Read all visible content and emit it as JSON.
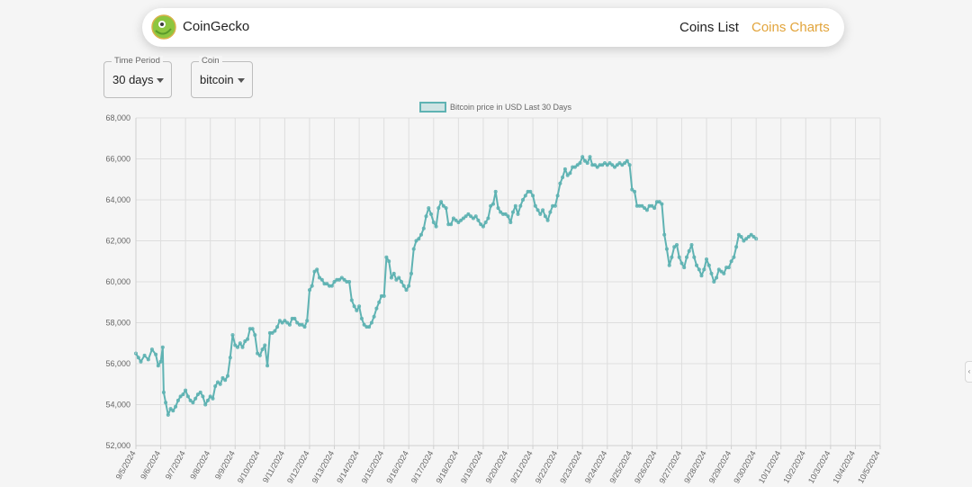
{
  "nav": {
    "brand": "CoinGecko",
    "links": [
      "Coins List",
      "Coins Charts"
    ]
  },
  "controls": {
    "time_period": {
      "label": "Time Period",
      "value": "30 days"
    },
    "coin": {
      "label": "Coin",
      "value": "bitcoin"
    }
  },
  "colors": {
    "line": "#5fb3b3",
    "active_link": "#e2a43b"
  },
  "side_handle": {
    "glyph": "‹"
  },
  "chart_data": {
    "type": "line",
    "title": "",
    "legend": "Bitcoin price in USD Last 30 Days",
    "legend_position": "top-center",
    "xlabel": "",
    "ylabel": "",
    "ylim": [
      52000,
      68000
    ],
    "yticks": [
      52000,
      54000,
      56000,
      58000,
      60000,
      62000,
      64000,
      66000,
      68000
    ],
    "ytick_labels": [
      "52,000",
      "54,000",
      "56,000",
      "58,000",
      "60,000",
      "62,000",
      "64,000",
      "66,000",
      "68,000"
    ],
    "categories": [
      "9/5/2024",
      "9/6/2024",
      "9/7/2024",
      "9/8/2024",
      "9/9/2024",
      "9/10/2024",
      "9/11/2024",
      "9/12/2024",
      "9/13/2024",
      "9/14/2024",
      "9/15/2024",
      "9/16/2024",
      "9/17/2024",
      "9/18/2024",
      "9/19/2024",
      "9/20/2024",
      "9/21/2024",
      "9/22/2024",
      "9/23/2024",
      "9/24/2024",
      "9/25/2024",
      "9/26/2024",
      "9/27/2024",
      "9/28/2024",
      "9/29/2024",
      "9/30/2024",
      "10/1/2024",
      "10/2/2024",
      "10/3/2024",
      "10/4/2024",
      "10/5/2024"
    ],
    "grid": true,
    "series": [
      {
        "name": "Bitcoin price in USD Last 30 Days",
        "points": [
          [
            0.0,
            56500
          ],
          [
            0.1,
            56300
          ],
          [
            0.2,
            56100
          ],
          [
            0.35,
            56400
          ],
          [
            0.5,
            56200
          ],
          [
            0.65,
            56700
          ],
          [
            0.8,
            56450
          ],
          [
            0.9,
            55900
          ],
          [
            1.0,
            56100
          ],
          [
            1.08,
            56800
          ],
          [
            1.12,
            54600
          ],
          [
            1.2,
            54100
          ],
          [
            1.3,
            53500
          ],
          [
            1.4,
            53800
          ],
          [
            1.5,
            53700
          ],
          [
            1.6,
            53900
          ],
          [
            1.7,
            54200
          ],
          [
            1.8,
            54400
          ],
          [
            1.9,
            54500
          ],
          [
            2.0,
            54700
          ],
          [
            2.1,
            54400
          ],
          [
            2.2,
            54200
          ],
          [
            2.3,
            54100
          ],
          [
            2.4,
            54300
          ],
          [
            2.5,
            54500
          ],
          [
            2.6,
            54600
          ],
          [
            2.7,
            54400
          ],
          [
            2.8,
            54000
          ],
          [
            2.9,
            54200
          ],
          [
            3.0,
            54400
          ],
          [
            3.1,
            54300
          ],
          [
            3.2,
            54900
          ],
          [
            3.3,
            55100
          ],
          [
            3.4,
            55000
          ],
          [
            3.5,
            55300
          ],
          [
            3.6,
            55200
          ],
          [
            3.7,
            55400
          ],
          [
            3.8,
            56300
          ],
          [
            3.9,
            57400
          ],
          [
            4.0,
            56900
          ],
          [
            4.1,
            56800
          ],
          [
            4.2,
            57000
          ],
          [
            4.3,
            56800
          ],
          [
            4.4,
            57100
          ],
          [
            4.5,
            57200
          ],
          [
            4.6,
            57700
          ],
          [
            4.7,
            57700
          ],
          [
            4.8,
            57400
          ],
          [
            4.9,
            56500
          ],
          [
            5.0,
            56400
          ],
          [
            5.1,
            56700
          ],
          [
            5.2,
            56900
          ],
          [
            5.3,
            55900
          ],
          [
            5.4,
            57500
          ],
          [
            5.5,
            57500
          ],
          [
            5.6,
            57600
          ],
          [
            5.7,
            57800
          ],
          [
            5.8,
            58100
          ],
          [
            5.9,
            58000
          ],
          [
            6.0,
            58100
          ],
          [
            6.1,
            58000
          ],
          [
            6.2,
            57900
          ],
          [
            6.3,
            58200
          ],
          [
            6.4,
            58200
          ],
          [
            6.5,
            58000
          ],
          [
            6.6,
            57900
          ],
          [
            6.7,
            57900
          ],
          [
            6.8,
            57800
          ],
          [
            6.9,
            58100
          ],
          [
            7.0,
            59600
          ],
          [
            7.1,
            59800
          ],
          [
            7.2,
            60500
          ],
          [
            7.3,
            60600
          ],
          [
            7.4,
            60200
          ],
          [
            7.5,
            60100
          ],
          [
            7.6,
            59900
          ],
          [
            7.7,
            59900
          ],
          [
            7.8,
            59800
          ],
          [
            7.9,
            59800
          ],
          [
            8.0,
            60000
          ],
          [
            8.1,
            60100
          ],
          [
            8.2,
            60100
          ],
          [
            8.3,
            60200
          ],
          [
            8.4,
            60100
          ],
          [
            8.5,
            60000
          ],
          [
            8.6,
            60000
          ],
          [
            8.7,
            59100
          ],
          [
            8.8,
            58800
          ],
          [
            8.9,
            58600
          ],
          [
            9.0,
            58800
          ],
          [
            9.1,
            58200
          ],
          [
            9.2,
            57900
          ],
          [
            9.3,
            57800
          ],
          [
            9.4,
            57800
          ],
          [
            9.5,
            58000
          ],
          [
            9.6,
            58300
          ],
          [
            9.7,
            58700
          ],
          [
            9.8,
            59000
          ],
          [
            9.9,
            59300
          ],
          [
            10.0,
            59300
          ],
          [
            10.1,
            61200
          ],
          [
            10.2,
            61000
          ],
          [
            10.3,
            60200
          ],
          [
            10.4,
            60400
          ],
          [
            10.5,
            60100
          ],
          [
            10.6,
            60200
          ],
          [
            10.7,
            60000
          ],
          [
            10.8,
            59800
          ],
          [
            10.9,
            59600
          ],
          [
            11.0,
            59800
          ],
          [
            11.1,
            60400
          ],
          [
            11.2,
            61600
          ],
          [
            11.3,
            62000
          ],
          [
            11.4,
            62100
          ],
          [
            11.5,
            62300
          ],
          [
            11.6,
            62600
          ],
          [
            11.7,
            63200
          ],
          [
            11.8,
            63600
          ],
          [
            11.9,
            63300
          ],
          [
            12.0,
            62900
          ],
          [
            12.1,
            62700
          ],
          [
            12.2,
            63600
          ],
          [
            12.3,
            63900
          ],
          [
            12.4,
            63700
          ],
          [
            12.5,
            63600
          ],
          [
            12.6,
            62800
          ],
          [
            12.7,
            62800
          ],
          [
            12.8,
            63100
          ],
          [
            12.9,
            63000
          ],
          [
            13.0,
            62900
          ],
          [
            13.1,
            63000
          ],
          [
            13.2,
            63100
          ],
          [
            13.3,
            63200
          ],
          [
            13.4,
            63300
          ],
          [
            13.5,
            63200
          ],
          [
            13.6,
            63100
          ],
          [
            13.7,
            63200
          ],
          [
            13.8,
            63000
          ],
          [
            13.9,
            62800
          ],
          [
            14.0,
            62700
          ],
          [
            14.1,
            62900
          ],
          [
            14.2,
            63100
          ],
          [
            14.3,
            63700
          ],
          [
            14.4,
            63800
          ],
          [
            14.5,
            64400
          ],
          [
            14.6,
            63600
          ],
          [
            14.7,
            63400
          ],
          [
            14.8,
            63300
          ],
          [
            14.9,
            63300
          ],
          [
            15.0,
            63200
          ],
          [
            15.1,
            62900
          ],
          [
            15.2,
            63400
          ],
          [
            15.3,
            63700
          ],
          [
            15.4,
            63300
          ],
          [
            15.5,
            63700
          ],
          [
            15.6,
            64000
          ],
          [
            15.7,
            64200
          ],
          [
            15.8,
            64400
          ],
          [
            15.9,
            64400
          ],
          [
            16.0,
            64200
          ],
          [
            16.1,
            63700
          ],
          [
            16.2,
            63500
          ],
          [
            16.3,
            63300
          ],
          [
            16.4,
            63500
          ],
          [
            16.5,
            63200
          ],
          [
            16.6,
            63000
          ],
          [
            16.7,
            63400
          ],
          [
            16.8,
            63700
          ],
          [
            16.9,
            63700
          ],
          [
            17.0,
            64200
          ],
          [
            17.1,
            64800
          ],
          [
            17.2,
            65100
          ],
          [
            17.3,
            65500
          ],
          [
            17.4,
            65200
          ],
          [
            17.5,
            65300
          ],
          [
            17.6,
            65600
          ],
          [
            17.7,
            65600
          ],
          [
            17.8,
            65700
          ],
          [
            17.9,
            65800
          ],
          [
            18.0,
            66100
          ],
          [
            18.1,
            65900
          ],
          [
            18.2,
            65800
          ],
          [
            18.3,
            66100
          ],
          [
            18.4,
            65700
          ],
          [
            18.5,
            65700
          ],
          [
            18.6,
            65600
          ],
          [
            18.7,
            65700
          ],
          [
            18.8,
            65700
          ],
          [
            18.9,
            65800
          ],
          [
            19.0,
            65700
          ],
          [
            19.1,
            65800
          ],
          [
            19.2,
            65700
          ],
          [
            19.3,
            65600
          ],
          [
            19.4,
            65700
          ],
          [
            19.5,
            65800
          ],
          [
            19.6,
            65700
          ],
          [
            19.7,
            65800
          ],
          [
            19.8,
            65900
          ],
          [
            19.9,
            65700
          ],
          [
            20.0,
            64500
          ],
          [
            20.1,
            64400
          ],
          [
            20.2,
            63700
          ],
          [
            20.3,
            63700
          ],
          [
            20.4,
            63700
          ],
          [
            20.5,
            63600
          ],
          [
            20.6,
            63500
          ],
          [
            20.7,
            63700
          ],
          [
            20.8,
            63700
          ],
          [
            20.9,
            63600
          ],
          [
            21.0,
            63900
          ],
          [
            21.1,
            63900
          ],
          [
            21.2,
            63800
          ],
          [
            21.3,
            62300
          ],
          [
            21.4,
            61600
          ],
          [
            21.5,
            60800
          ],
          [
            21.6,
            61200
          ],
          [
            21.7,
            61700
          ],
          [
            21.8,
            61800
          ],
          [
            21.9,
            61200
          ],
          [
            22.0,
            60900
          ],
          [
            22.1,
            60700
          ],
          [
            22.2,
            61200
          ],
          [
            22.3,
            61500
          ],
          [
            22.4,
            61800
          ],
          [
            22.5,
            61200
          ],
          [
            22.6,
            60800
          ],
          [
            22.7,
            60600
          ],
          [
            22.8,
            60300
          ],
          [
            22.9,
            60600
          ],
          [
            23.0,
            61100
          ],
          [
            23.1,
            60800
          ],
          [
            23.2,
            60400
          ],
          [
            23.3,
            60000
          ],
          [
            23.4,
            60200
          ],
          [
            23.5,
            60600
          ],
          [
            23.6,
            60500
          ],
          [
            23.7,
            60400
          ],
          [
            23.8,
            60700
          ],
          [
            23.9,
            60700
          ],
          [
            24.0,
            61000
          ],
          [
            24.1,
            61200
          ],
          [
            24.2,
            61700
          ],
          [
            24.3,
            62300
          ],
          [
            24.4,
            62200
          ],
          [
            24.5,
            62000
          ],
          [
            24.6,
            62100
          ],
          [
            24.7,
            62200
          ],
          [
            24.8,
            62300
          ],
          [
            24.9,
            62200
          ],
          [
            25.0,
            62100
          ]
        ]
      }
    ]
  }
}
